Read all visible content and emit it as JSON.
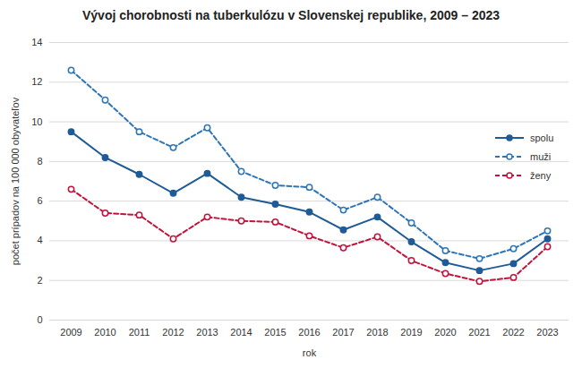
{
  "chart_data": {
    "type": "line",
    "title": "Vývoj chorobnosti na tuberkulózu v Slovenskej republike, 2009 – 2023",
    "x_label": "rok",
    "y_label": "počet prípadov na 100 000 obyvateľov",
    "categories": [
      "2009",
      "2010",
      "2011",
      "2012",
      "2013",
      "2014",
      "2015",
      "2016",
      "2017",
      "2018",
      "2019",
      "2020",
      "2021",
      "2022",
      "2023"
    ],
    "series": [
      {
        "name": "spolu",
        "color": "#1f5b96",
        "marker": "circle",
        "line_style": "solid",
        "values": [
          9.5,
          8.2,
          7.35,
          6.4,
          7.4,
          6.2,
          5.85,
          5.45,
          4.55,
          5.2,
          3.95,
          2.9,
          2.5,
          2.85,
          4.1
        ]
      },
      {
        "name": "muži",
        "color": "#2e75b6",
        "marker": "circle-open",
        "line_style": "dashed",
        "values": [
          12.6,
          11.1,
          9.5,
          8.7,
          9.7,
          7.5,
          6.8,
          6.7,
          5.55,
          6.2,
          4.9,
          3.5,
          3.1,
          3.6,
          4.5
        ]
      },
      {
        "name": "ženy",
        "color": "#c0143c",
        "marker": "circle-open",
        "line_style": "dashed",
        "values": [
          6.6,
          5.4,
          5.3,
          4.1,
          5.2,
          5.0,
          4.95,
          4.25,
          3.65,
          4.2,
          3.0,
          2.35,
          1.95,
          2.15,
          3.7
        ]
      }
    ],
    "ylim": [
      0,
      14
    ],
    "yticks": [
      0,
      2,
      4,
      6,
      8,
      10,
      12,
      14
    ],
    "grid": true,
    "legend": "right"
  }
}
